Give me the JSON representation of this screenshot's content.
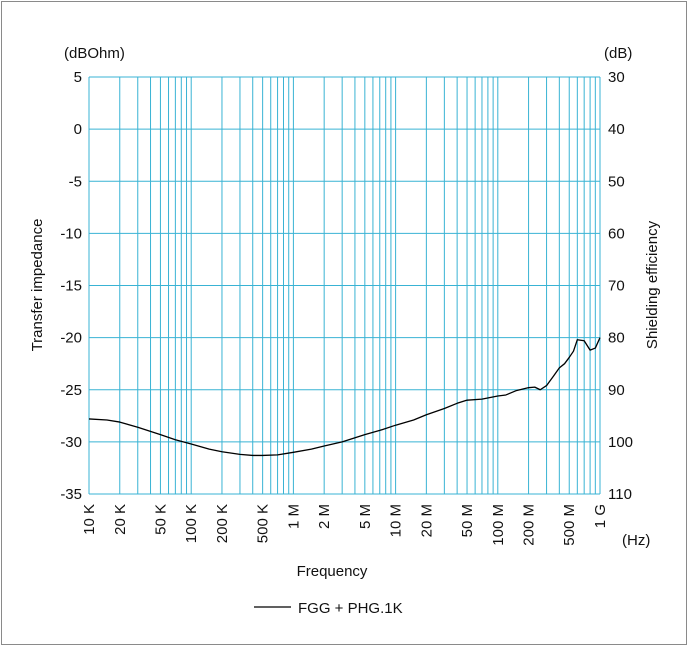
{
  "chart_data": {
    "type": "line",
    "xlabel": "Frequency",
    "x_unit": "(Hz)",
    "ylabel_left": "Transfer impedance",
    "y_unit_left": "(dBOhm)",
    "ylabel_right": "Shielding efficiency",
    "y_unit_right": "(dB)",
    "x_scale": "log",
    "xlim": [
      10000,
      1000000000
    ],
    "ylim_left": [
      -35,
      5
    ],
    "ylim_right": [
      110,
      30
    ],
    "grid": true,
    "legend_position": "bottom-center",
    "colors": {
      "grid": "#39b3d4",
      "axes": "#39b3d4",
      "line": "#000000"
    },
    "x_ticks": [
      {
        "value": 10000,
        "label": "10 K"
      },
      {
        "value": 20000,
        "label": "20 K"
      },
      {
        "value": 50000,
        "label": "50 K"
      },
      {
        "value": 100000,
        "label": "100 K"
      },
      {
        "value": 200000,
        "label": "200 K"
      },
      {
        "value": 500000,
        "label": "500 K"
      },
      {
        "value": 1000000,
        "label": "1 M"
      },
      {
        "value": 2000000,
        "label": "2 M"
      },
      {
        "value": 5000000,
        "label": "5 M"
      },
      {
        "value": 10000000,
        "label": "10 M"
      },
      {
        "value": 20000000,
        "label": "20 M"
      },
      {
        "value": 50000000,
        "label": "50 M"
      },
      {
        "value": 100000000,
        "label": "100 M"
      },
      {
        "value": 200000000,
        "label": "200 M"
      },
      {
        "value": 500000000,
        "label": "500 M"
      },
      {
        "value": 1000000000,
        "label": "1 G"
      }
    ],
    "y_ticks_left": [
      "5",
      "0",
      "-5",
      "-10",
      "-15",
      "-20",
      "-25",
      "-30",
      "-35"
    ],
    "y_ticks_right": [
      "30",
      "40",
      "50",
      "60",
      "70",
      "80",
      "90",
      "100",
      "110"
    ],
    "series": [
      {
        "name": "FGG + PHG.1K",
        "x": [
          10000,
          15000,
          20000,
          30000,
          50000,
          70000,
          100000,
          150000,
          200000,
          300000,
          400000,
          500000,
          700000,
          1000000,
          1500000,
          2000000,
          3000000,
          5000000,
          7000000,
          10000000,
          15000000,
          20000000,
          30000000,
          40000000,
          50000000,
          70000000,
          100000000,
          120000000,
          150000000,
          200000000,
          230000000,
          260000000,
          300000000,
          350000000,
          400000000,
          450000000,
          500000000,
          550000000,
          600000000,
          700000000,
          800000000,
          900000000,
          1000000000
        ],
        "y": [
          -27.8,
          -27.9,
          -28.1,
          -28.6,
          -29.3,
          -29.8,
          -30.2,
          -30.7,
          -30.95,
          -31.2,
          -31.3,
          -31.3,
          -31.25,
          -31.0,
          -30.7,
          -30.4,
          -30.0,
          -29.3,
          -28.9,
          -28.4,
          -27.9,
          -27.4,
          -26.8,
          -26.3,
          -26.0,
          -25.9,
          -25.6,
          -25.5,
          -25.1,
          -24.8,
          -24.75,
          -25.0,
          -24.6,
          -23.7,
          -22.9,
          -22.5,
          -21.9,
          -21.3,
          -20.2,
          -20.3,
          -21.2,
          -21.0,
          -20.0
        ]
      }
    ]
  }
}
